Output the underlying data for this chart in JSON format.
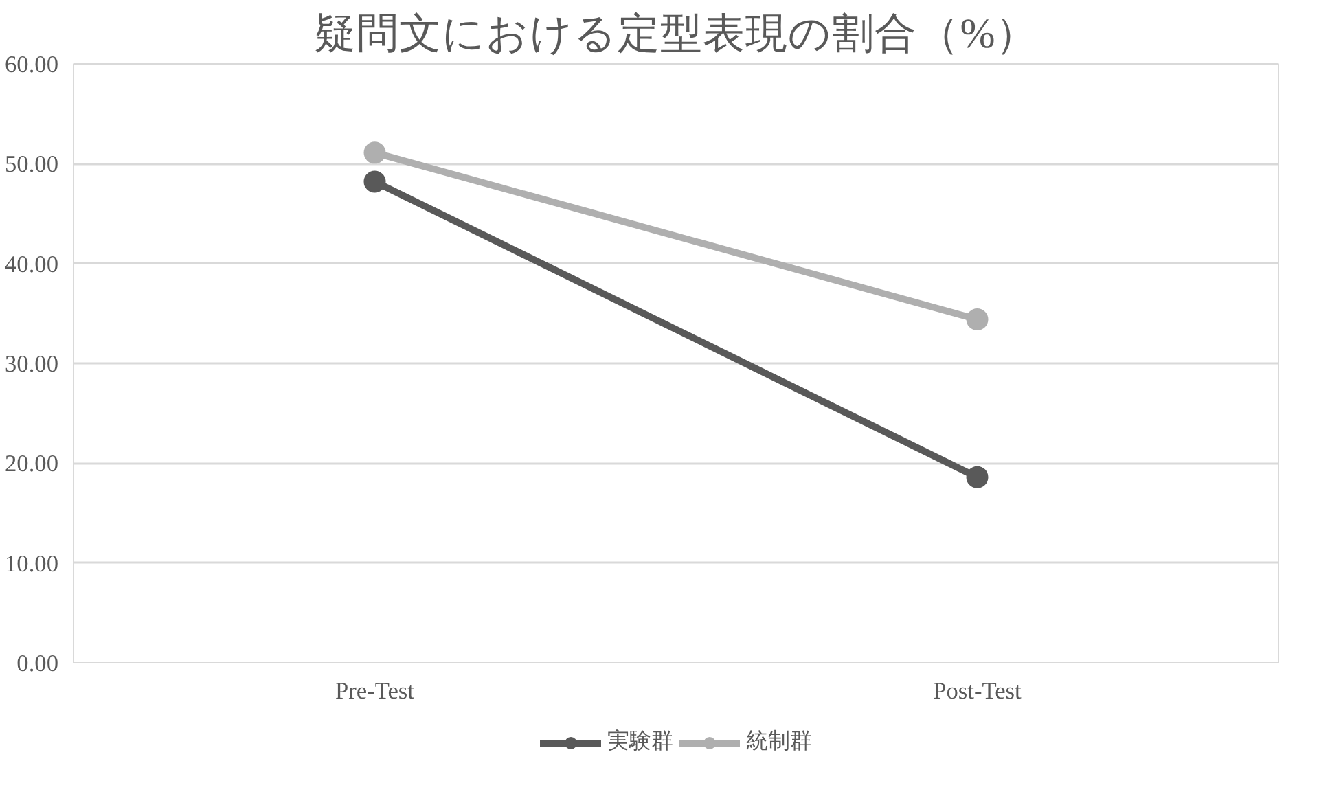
{
  "chart_data": {
    "type": "line",
    "title": "疑問文における定型表現の割合（%）",
    "categories": [
      "Pre-Test",
      "Post-Test"
    ],
    "series": [
      {
        "name": "実験群",
        "color": "#595959",
        "values": [
          48.2,
          18.6
        ]
      },
      {
        "name": "統制群",
        "color": "#afafaf",
        "values": [
          51.1,
          34.4
        ]
      }
    ],
    "ylim": [
      0,
      60
    ],
    "yticks": [
      {
        "value": 0,
        "label": "0.00"
      },
      {
        "value": 10,
        "label": "10.00"
      },
      {
        "value": 20,
        "label": "20.00"
      },
      {
        "value": 30,
        "label": "30.00"
      },
      {
        "value": 40,
        "label": "40.00"
      },
      {
        "value": 50,
        "label": "50.00"
      },
      {
        "value": 60,
        "label": "60.00"
      }
    ],
    "grid": "y",
    "legend": "bottom",
    "marker": "circle",
    "line_style": "solid"
  }
}
